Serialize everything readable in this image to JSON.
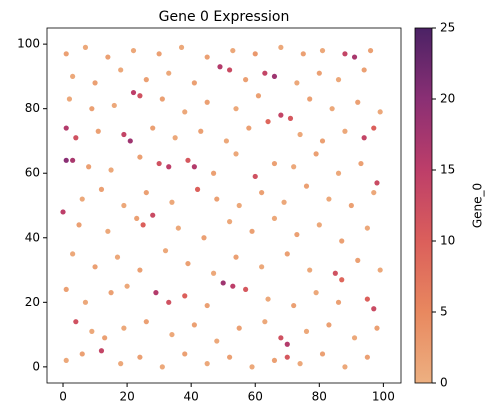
{
  "chart_data": {
    "type": "scatter",
    "title": "Gene 0 Expression",
    "x": [
      1,
      7,
      14,
      22,
      30,
      37,
      45,
      53,
      60,
      68,
      75,
      81,
      88,
      91,
      96,
      3,
      10,
      18,
      26,
      33,
      41,
      49,
      52,
      57,
      63,
      66,
      73,
      80,
      86,
      94,
      2,
      9,
      16,
      22,
      24,
      31,
      38,
      45,
      54,
      61,
      68,
      71,
      77,
      84,
      92,
      99,
      1,
      4,
      11,
      19,
      21,
      28,
      35,
      43,
      51,
      58,
      64,
      74,
      81,
      88,
      94,
      97,
      1,
      3,
      8,
      15,
      24,
      30,
      33,
      39,
      41,
      47,
      54,
      60,
      66,
      72,
      79,
      86,
      93,
      98,
      6,
      12,
      19,
      26,
      34,
      42,
      48,
      55,
      62,
      69,
      76,
      83,
      90,
      97,
      0,
      5,
      14,
      23,
      28,
      25,
      36,
      44,
      52,
      59,
      66,
      73,
      80,
      87,
      95,
      3,
      10,
      17,
      24,
      32,
      39,
      47,
      54,
      62,
      70,
      77,
      85,
      87,
      92,
      99,
      1,
      7,
      15,
      20,
      29,
      33,
      38,
      45,
      50,
      53,
      57,
      64,
      72,
      79,
      86,
      95,
      97,
      4,
      9,
      13,
      19,
      26,
      34,
      41,
      48,
      55,
      63,
      70,
      68,
      76,
      83,
      91,
      98,
      1,
      6,
      12,
      18,
      24,
      31,
      38,
      45,
      52,
      59,
      66,
      70,
      74,
      81,
      88,
      95
    ],
    "y": [
      97,
      99,
      96,
      98,
      97,
      99,
      96,
      98,
      97,
      99,
      97,
      98,
      97,
      96,
      98,
      90,
      88,
      92,
      89,
      91,
      88,
      93,
      92,
      89,
      91,
      90,
      88,
      91,
      89,
      92,
      83,
      80,
      81,
      85,
      84,
      83,
      79,
      82,
      80,
      84,
      78,
      77,
      83,
      80,
      82,
      79,
      74,
      71,
      73,
      72,
      70,
      74,
      71,
      73,
      70,
      74,
      76,
      72,
      70,
      73,
      71,
      74,
      64,
      64,
      62,
      61,
      65,
      63,
      62,
      64,
      62,
      60,
      66,
      59,
      63,
      62,
      66,
      60,
      63,
      57,
      52,
      55,
      50,
      54,
      51,
      55,
      52,
      50,
      54,
      51,
      56,
      52,
      50,
      54,
      48,
      44,
      42,
      46,
      47,
      44,
      43,
      40,
      45,
      42,
      46,
      41,
      44,
      39,
      43,
      35,
      31,
      34,
      30,
      36,
      32,
      29,
      34,
      31,
      35,
      30,
      29,
      27,
      33,
      30,
      24,
      20,
      23,
      25,
      23,
      20,
      22,
      19,
      26,
      25,
      24,
      21,
      19,
      23,
      20,
      21,
      18,
      14,
      11,
      9,
      12,
      14,
      10,
      13,
      8,
      12,
      14,
      7,
      9,
      11,
      13,
      9,
      12,
      2,
      4,
      5,
      1,
      3,
      0,
      4,
      1,
      3,
      0,
      2,
      3,
      1,
      4,
      0,
      3
    ],
    "values": [
      2,
      1,
      2,
      1,
      2,
      1,
      2,
      1,
      3,
      1,
      2,
      1,
      14,
      17,
      2,
      1,
      2,
      1,
      2,
      1,
      2,
      16,
      13,
      2,
      14,
      18,
      1,
      2,
      1,
      2,
      1,
      2,
      1,
      15,
      12,
      2,
      1,
      2,
      1,
      2,
      14,
      11,
      2,
      1,
      2,
      1,
      16,
      12,
      2,
      14,
      18,
      2,
      1,
      2,
      1,
      2,
      9,
      1,
      2,
      1,
      14,
      10,
      20,
      17,
      2,
      1,
      2,
      12,
      15,
      11,
      16,
      2,
      1,
      12,
      2,
      1,
      2,
      1,
      2,
      13,
      1,
      2,
      1,
      2,
      1,
      10,
      2,
      1,
      2,
      1,
      2,
      1,
      2,
      1,
      15,
      2,
      1,
      2,
      13,
      10,
      1,
      2,
      1,
      2,
      1,
      2,
      1,
      2,
      1,
      1,
      2,
      1,
      2,
      1,
      2,
      1,
      2,
      1,
      2,
      1,
      12,
      9,
      2,
      1,
      2,
      1,
      2,
      1,
      16,
      12,
      10,
      2,
      18,
      15,
      11,
      1,
      2,
      1,
      2,
      10,
      13,
      12,
      1,
      2,
      1,
      2,
      1,
      2,
      1,
      2,
      1,
      16,
      12,
      1,
      2,
      1,
      2,
      1,
      2,
      14,
      1,
      2,
      1,
      2,
      1,
      2,
      1,
      2,
      11,
      1,
      2,
      1,
      2
    ],
    "xlim": [
      -5,
      105.5
    ],
    "ylim": [
      -5,
      105
    ],
    "xticks": [
      0,
      20,
      40,
      60,
      80,
      100
    ],
    "yticks": [
      0,
      20,
      40,
      60,
      80,
      100
    ],
    "clim": [
      0,
      25
    ],
    "cticks": [
      0,
      5,
      10,
      15,
      20,
      25
    ],
    "colorbar_label": "Gene_0",
    "colormap": [
      "#edb081",
      "#e8885f",
      "#db5f5b",
      "#bd3e69",
      "#8a2f74",
      "#4b2265"
    ]
  }
}
